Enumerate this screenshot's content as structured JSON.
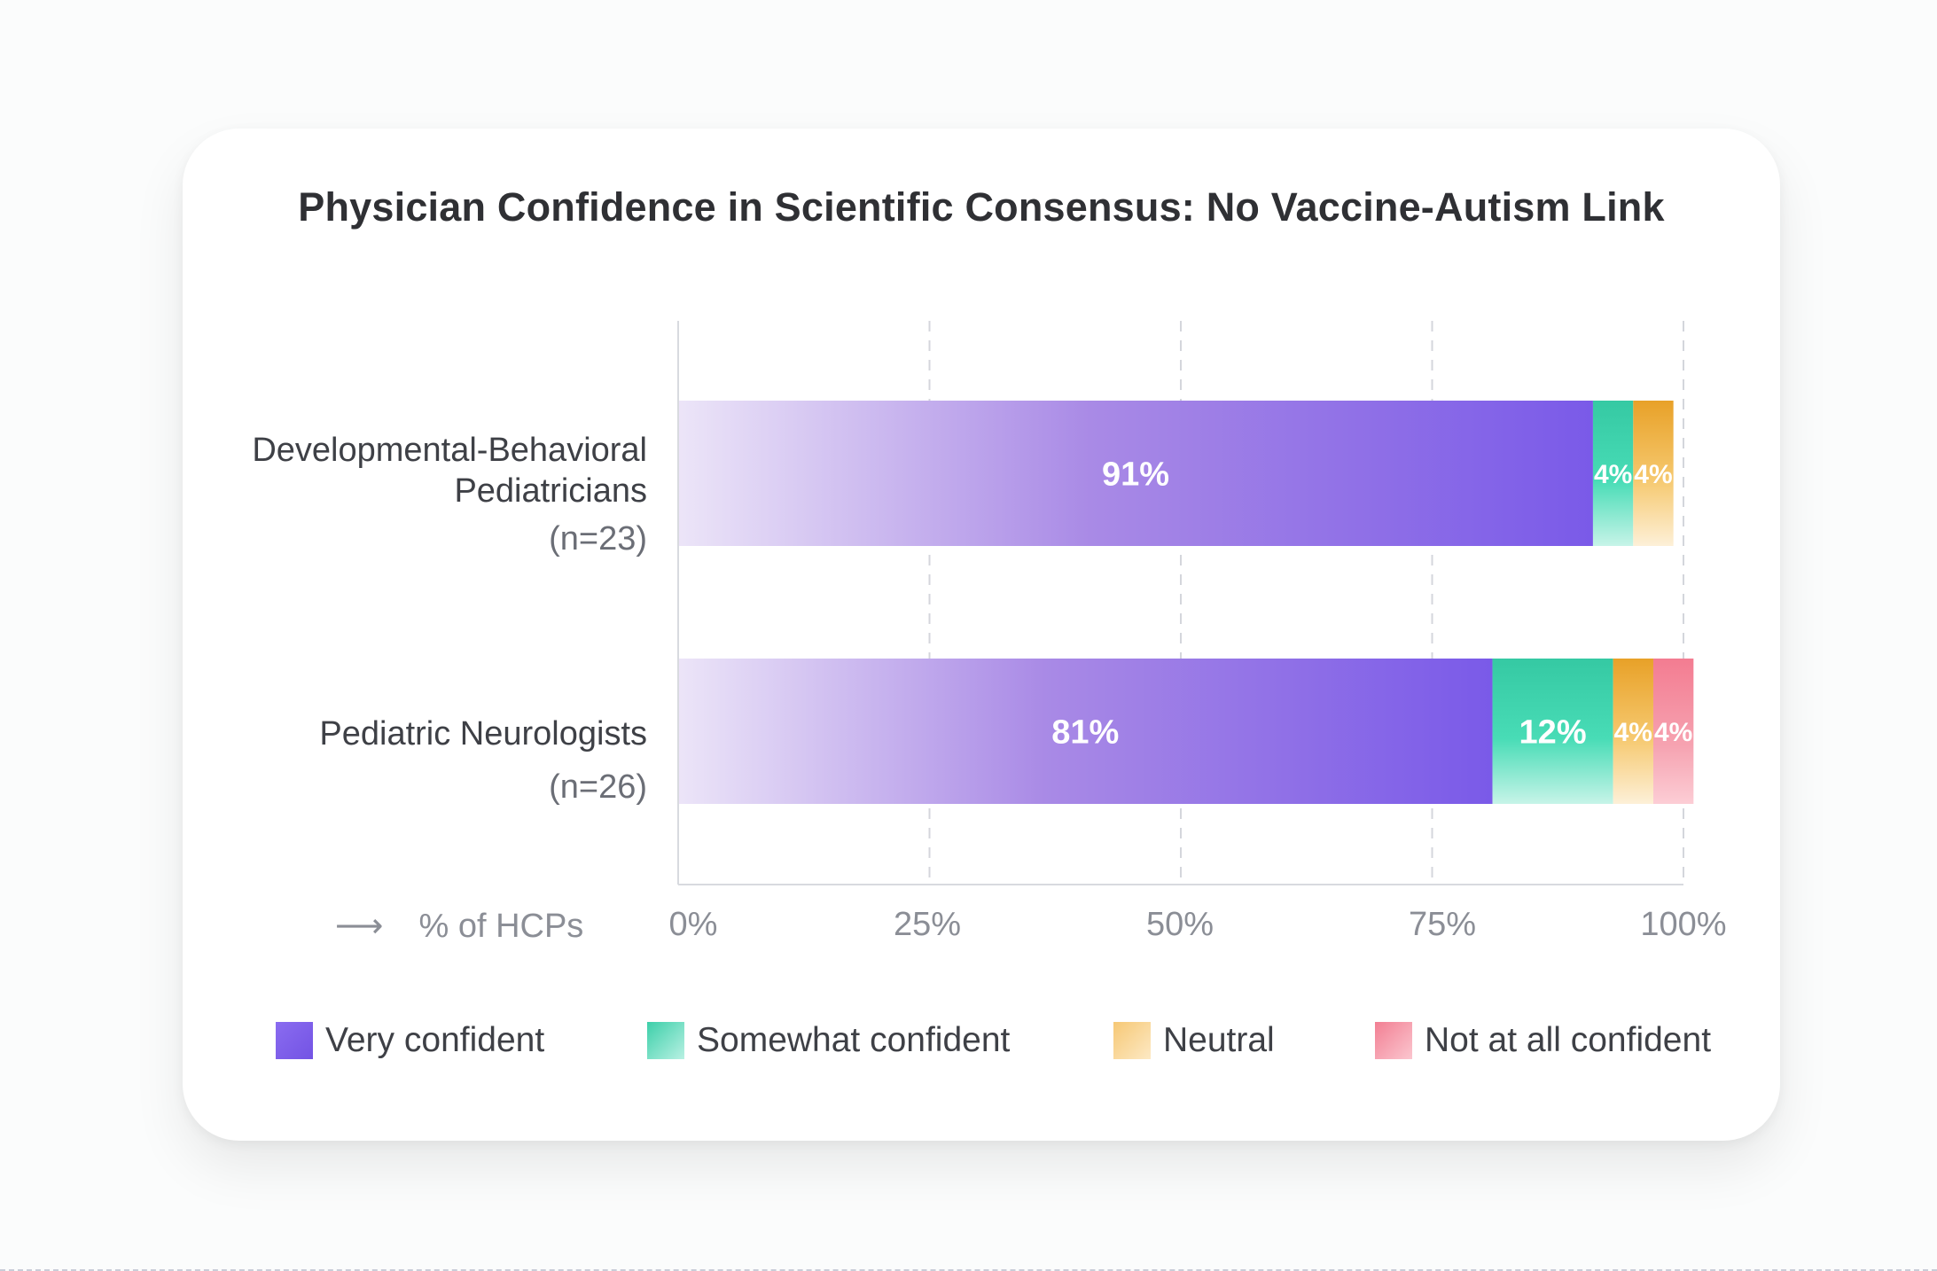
{
  "chart_data": {
    "type": "bar",
    "orientation": "horizontal",
    "stacked": true,
    "title": "Physician Confidence in Scientific Consensus: No Vaccine-Autism Link",
    "xlabel": "% of HCPs",
    "xlim": [
      0,
      100
    ],
    "x_ticks": [
      "0%",
      "25%",
      "50%",
      "75%",
      "100%"
    ],
    "grid": "vertical dashed",
    "legend_position": "bottom",
    "categories": [
      {
        "label_lines": [
          "Developmental-Behavioral",
          "Pediatricians"
        ],
        "n": "(n=23)"
      },
      {
        "label_lines": [
          "Pediatric Neurologists"
        ],
        "n": "(n=26)"
      }
    ],
    "series": [
      {
        "name": "Very confident",
        "color": "#7a5ae8",
        "values": [
          91,
          81
        ],
        "labels": [
          "91%",
          "81%"
        ]
      },
      {
        "name": "Somewhat confident",
        "color": "#3dd6b0",
        "values": [
          4,
          12
        ],
        "labels": [
          "4%",
          "12%"
        ]
      },
      {
        "name": "Neutral",
        "color": "#f4b942",
        "values": [
          4,
          4
        ],
        "labels": [
          "4%",
          "4%"
        ]
      },
      {
        "name": "Not at all confident",
        "color": "#f58a9c",
        "values": [
          0,
          4
        ],
        "labels": [
          "",
          "4%"
        ]
      }
    ]
  }
}
